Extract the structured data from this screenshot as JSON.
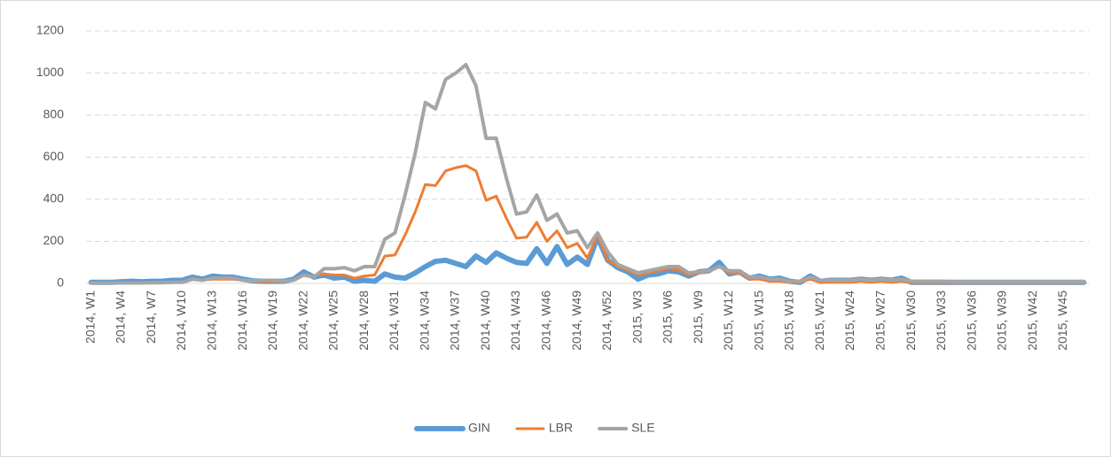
{
  "chart_data": {
    "type": "line",
    "categories": [
      "2014, W1",
      null,
      null,
      "2014, W4",
      null,
      null,
      "2014, W7",
      null,
      null,
      "2014, W10",
      null,
      null,
      "2014, W13",
      null,
      null,
      "2014, W16",
      null,
      null,
      "2014, W19",
      null,
      null,
      "2014, W22",
      null,
      null,
      "2014, W25",
      null,
      null,
      "2014, W28",
      null,
      null,
      "2014, W31",
      null,
      null,
      "2014, W34",
      null,
      null,
      "2014, W37",
      null,
      null,
      "2014, W40",
      null,
      null,
      "2014, W43",
      null,
      null,
      "2014, W46",
      null,
      null,
      "2014, W49",
      null,
      null,
      "2014, W52",
      null,
      null,
      "2015, W3",
      null,
      null,
      "2015, W6",
      null,
      null,
      "2015, W9",
      null,
      null,
      "2015, W12",
      null,
      null,
      "2015, W15",
      null,
      null,
      "2015, W18",
      null,
      null,
      "2015, W21",
      null,
      null,
      "2015, W24",
      null,
      null,
      "2015, W27",
      null,
      null,
      "2015, W30",
      null,
      null,
      "2015, W33",
      null,
      null,
      "2015, W36",
      null,
      null,
      "2015, W39",
      null,
      null,
      "2015, W42",
      null,
      null,
      "2015, W45",
      null,
      null
    ],
    "series": [
      {
        "name": "GIN",
        "color": "#5b9bd5",
        "values": [
          5,
          5,
          5,
          8,
          10,
          8,
          10,
          10,
          15,
          15,
          30,
          20,
          35,
          30,
          30,
          20,
          12,
          10,
          10,
          10,
          20,
          55,
          30,
          40,
          25,
          30,
          10,
          15,
          10,
          45,
          30,
          25,
          50,
          80,
          105,
          110,
          95,
          80,
          130,
          100,
          145,
          120,
          100,
          95,
          165,
          95,
          175,
          90,
          125,
          90,
          220,
          110,
          75,
          55,
          20,
          40,
          45,
          60,
          55,
          35,
          55,
          60,
          100,
          45,
          55,
          25,
          35,
          20,
          25,
          10,
          5,
          35,
          10,
          15,
          15,
          15,
          20,
          15,
          20,
          15,
          25,
          5,
          5,
          5,
          5,
          5,
          5,
          5,
          5,
          5,
          5,
          5,
          5,
          5,
          5,
          5,
          5,
          5,
          5
        ]
      },
      {
        "name": "LBR",
        "color": "#ed7d31",
        "values": [
          0,
          0,
          0,
          2,
          2,
          2,
          3,
          3,
          5,
          5,
          25,
          15,
          20,
          20,
          20,
          15,
          10,
          8,
          8,
          8,
          15,
          40,
          35,
          45,
          40,
          40,
          25,
          35,
          40,
          130,
          135,
          230,
          340,
          470,
          465,
          535,
          550,
          560,
          535,
          395,
          415,
          310,
          215,
          220,
          290,
          200,
          250,
          170,
          190,
          120,
          230,
          110,
          80,
          60,
          40,
          50,
          60,
          70,
          65,
          40,
          50,
          55,
          80,
          50,
          50,
          20,
          20,
          10,
          10,
          5,
          5,
          20,
          5,
          5,
          5,
          5,
          10,
          5,
          10,
          5,
          10,
          3,
          2,
          2,
          2,
          2,
          2,
          2,
          2,
          2,
          2,
          2,
          2,
          2,
          2,
          2,
          2,
          2,
          2
        ]
      },
      {
        "name": "SLE",
        "color": "#a5a5a5",
        "values": [
          2,
          2,
          2,
          2,
          2,
          2,
          3,
          3,
          5,
          5,
          20,
          15,
          25,
          25,
          25,
          15,
          12,
          15,
          15,
          10,
          15,
          40,
          30,
          70,
          70,
          75,
          60,
          80,
          80,
          210,
          240,
          420,
          620,
          860,
          830,
          970,
          1000,
          1040,
          940,
          690,
          690,
          500,
          330,
          340,
          420,
          300,
          330,
          240,
          250,
          170,
          240,
          150,
          90,
          70,
          50,
          60,
          70,
          80,
          80,
          50,
          55,
          60,
          80,
          60,
          60,
          30,
          30,
          20,
          20,
          10,
          10,
          30,
          15,
          15,
          15,
          15,
          20,
          15,
          20,
          15,
          20,
          10,
          10,
          10,
          10,
          8,
          8,
          8,
          8,
          8,
          8,
          8,
          8,
          8,
          8,
          8,
          8,
          8,
          8
        ]
      }
    ],
    "ylim": [
      0,
      1200
    ],
    "yticks": [
      0,
      200,
      400,
      600,
      800,
      1000,
      1200
    ],
    "grid": true,
    "legend": "bottom"
  }
}
